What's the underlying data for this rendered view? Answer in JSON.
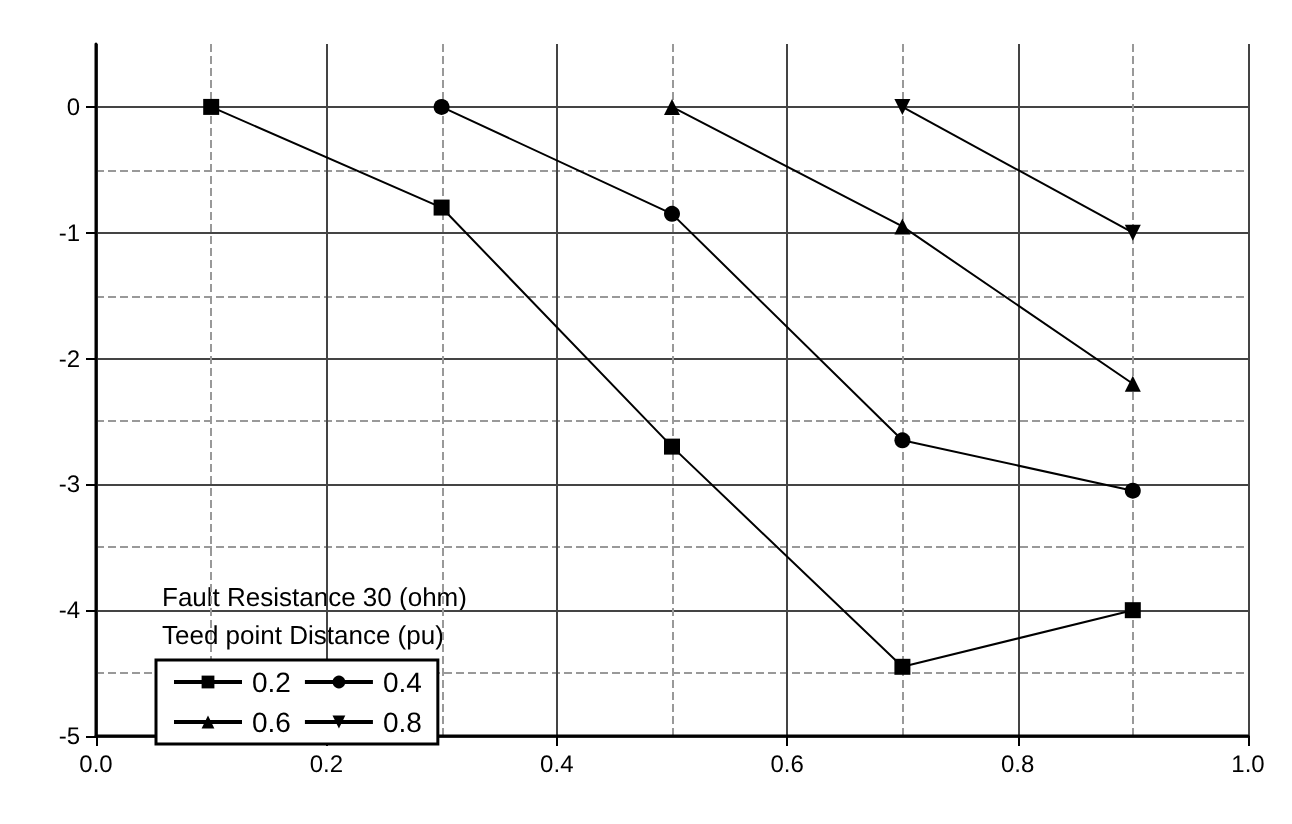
{
  "chart_data": {
    "type": "line",
    "legend_title": "Fault Resistance 30 (ohm)\nTeed point Distance (pu)",
    "legend": "bottom left",
    "grid": true,
    "line_style": "solid",
    "xlim": [
      0,
      1
    ],
    "xticks": [
      {
        "value": 0,
        "label": "0.0"
      },
      0.2,
      0.4,
      0.6,
      0.8,
      {
        "value": 1,
        "label": "1.0"
      }
    ],
    "ylim": [
      -5,
      0.5
    ],
    "yticks": [
      -5,
      -4,
      -3,
      -2,
      -1,
      0
    ],
    "series": [
      {
        "name": "0.2",
        "color": "#000000",
        "marker": "square",
        "x": [
          0.1,
          0.3,
          0.5,
          0.7,
          0.9
        ],
        "values": [
          0,
          -0.8,
          -2.7,
          -4.45,
          -4.0
        ]
      },
      {
        "name": "0.4",
        "color": "#000000",
        "marker": "circle",
        "x": [
          0.3,
          0.5,
          0.7,
          0.9
        ],
        "values": [
          0,
          -0.85,
          -2.65,
          -3.05
        ]
      },
      {
        "name": "0.6",
        "color": "#000000",
        "marker": "triangle",
        "x": [
          0.5,
          0.7,
          0.9
        ],
        "values": [
          0,
          -0.95,
          -2.2
        ]
      },
      {
        "name": "0.8",
        "color": "#000000",
        "marker": "triangle-down",
        "x": [
          0.7,
          0.9
        ],
        "values": [
          0,
          -1.0
        ]
      }
    ]
  }
}
